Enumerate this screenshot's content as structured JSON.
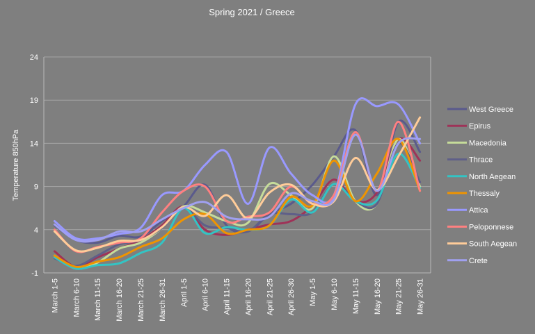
{
  "chart_data": {
    "type": "line",
    "title": "Spring 2021 / Greece",
    "xlabel": "",
    "ylabel": "Temperature 850hPa",
    "ylim": [
      -1,
      24
    ],
    "yticks": [
      -1,
      4,
      9,
      14,
      19,
      24
    ],
    "grid": true,
    "legend_position": "right",
    "categories": [
      "March 1-5",
      "March 6-10",
      "March 11-15",
      "March 16-20",
      "March 21-25",
      "March 26-31",
      "April 1-5",
      "April 6-10",
      "April 11-15",
      "April 16-20",
      "April 21-25",
      "April 26-30",
      "May 1-5",
      "May 6-10",
      "May 11-15",
      "May 16-20",
      "May 21-25",
      "May 26-31"
    ],
    "series": [
      {
        "name": "West Greece",
        "color": "#5a5a8c",
        "values": [
          4.5,
          2.8,
          2.5,
          3.3,
          3.2,
          5.0,
          6.7,
          9.2,
          4.5,
          3.8,
          5.8,
          7.0,
          9.2,
          12.5,
          15.5,
          8.0,
          16.5,
          13.0
        ]
      },
      {
        "name": "Epirus",
        "color": "#9e3358",
        "values": [
          1.5,
          -0.3,
          0.8,
          1.8,
          2.8,
          4.5,
          6.7,
          4.0,
          3.4,
          4.0,
          4.6,
          5.0,
          6.8,
          9.8,
          7.3,
          8.3,
          14.5,
          12.0
        ]
      },
      {
        "name": "Macedonia",
        "color": "#c6dc9a",
        "values": [
          1.0,
          -0.5,
          0.2,
          1.8,
          2.5,
          4.2,
          6.7,
          6.0,
          5.0,
          4.8,
          9.3,
          8.0,
          6.5,
          12.5,
          7.3,
          7.0,
          14.5,
          9.0
        ]
      },
      {
        "name": "Thrace",
        "color": "#5f5f88",
        "values": [
          0.7,
          -0.2,
          1.0,
          2.3,
          2.8,
          4.2,
          6.5,
          4.5,
          4.2,
          3.8,
          5.8,
          5.8,
          6.0,
          9.3,
          7.3,
          7.0,
          14.0,
          9.5
        ]
      },
      {
        "name": "North Aegean",
        "color": "#33c4c4",
        "values": [
          0.8,
          -0.5,
          -0.1,
          0.1,
          1.3,
          2.5,
          6.5,
          3.6,
          4.3,
          4.0,
          4.5,
          7.5,
          6.0,
          9.3,
          7.3,
          7.4,
          12.8,
          8.8
        ]
      },
      {
        "name": "Thessaly",
        "color": "#ef9400",
        "values": [
          1.0,
          -0.3,
          0.3,
          0.8,
          2.0,
          3.0,
          5.2,
          5.8,
          3.6,
          4.0,
          4.5,
          7.8,
          6.8,
          12.0,
          7.3,
          10.5,
          14.5,
          8.5
        ]
      },
      {
        "name": "Attica",
        "color": "#9999ff",
        "values": [
          5.0,
          3.0,
          3.0,
          3.5,
          4.2,
          8.0,
          8.5,
          11.5,
          13.0,
          7.0,
          13.5,
          10.5,
          8.0,
          8.0,
          18.5,
          18.3,
          18.5,
          14.0
        ]
      },
      {
        "name": "Peloponnese",
        "color": "#ff8080",
        "values": [
          4.0,
          1.5,
          2.0,
          2.5,
          3.0,
          6.0,
          8.5,
          9.0,
          5.0,
          5.5,
          6.0,
          9.0,
          7.0,
          8.0,
          15.3,
          8.5,
          16.5,
          8.5
        ]
      },
      {
        "name": "South Aegean",
        "color": "#ffcc99",
        "values": [
          3.8,
          1.6,
          1.9,
          2.7,
          2.8,
          4.3,
          6.6,
          5.6,
          8.0,
          5.3,
          8.3,
          9.2,
          7.0,
          7.3,
          12.3,
          8.6,
          12.5,
          17.0
        ]
      },
      {
        "name": "Crete",
        "color": "#a0a0f0",
        "values": [
          4.6,
          2.8,
          2.8,
          3.8,
          3.8,
          5.2,
          6.5,
          7.2,
          5.5,
          5.2,
          5.5,
          8.2,
          7.3,
          7.5,
          15.0,
          8.5,
          14.0,
          14.5
        ]
      }
    ]
  }
}
